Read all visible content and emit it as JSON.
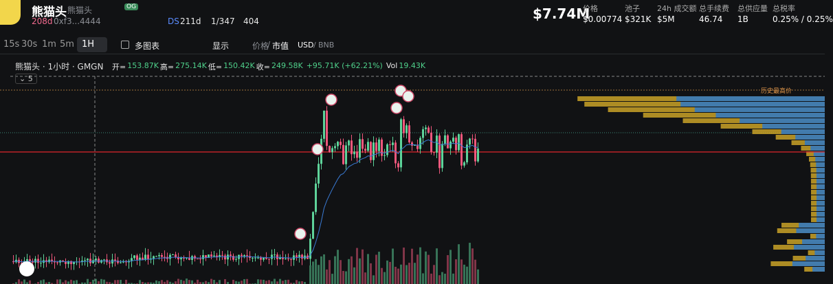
{
  "header": {
    "name": "熊猫头",
    "alias": "熊猫头",
    "badge": "OG",
    "age": "208d",
    "address": "0xf3...4444",
    "ds": "DS",
    "ds_age": "211d",
    "holders": "1/347",
    "views": "404",
    "market_cap": "$7.74M"
  },
  "stats": [
    {
      "label": "价格",
      "value": "$0.00774"
    },
    {
      "label": "池子",
      "value": "$321K"
    },
    {
      "label": "24h 成交额",
      "value": "$5M"
    },
    {
      "label": "总手续费",
      "value": "46.74"
    },
    {
      "label": "总供应量",
      "value": "1B"
    },
    {
      "label": "总税率",
      "value": "0.25% / 0.25%"
    }
  ],
  "toolbar": {
    "intervals": [
      "15s",
      "30s",
      "1m",
      "5m",
      "1H"
    ],
    "multi_chart": "多图表",
    "display": "显示",
    "price": "价格",
    "market_cap": "市值",
    "usd": "USD",
    "bnb": "BNB"
  },
  "legend": {
    "title": "熊猫头 · 1小时 · GMGN",
    "open_label": "开=",
    "open": "153.87K",
    "high_label": "高=",
    "high": "275.14K",
    "low_label": "低=",
    "low": "150.42K",
    "close_label": "收=",
    "close": "249.58K",
    "change": "+95.71K (+62.21%)",
    "vol_label": "Vol",
    "vol": "19.43K",
    "collapse_count": "5"
  },
  "ath_label": "历史最高价"
}
